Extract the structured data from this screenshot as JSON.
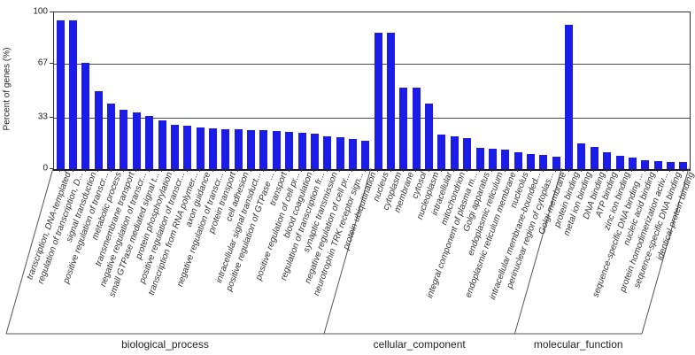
{
  "chart_data": {
    "type": "bar",
    "title": "",
    "ylabel": "Percent of genes (%)",
    "ylim": [
      0,
      100
    ],
    "yticks": [
      0,
      33,
      67,
      100
    ],
    "grid": true,
    "legend": "none",
    "bar_color": "#1c1ce8",
    "groups": [
      {
        "label": "biological_process",
        "items": [
          {
            "label": "transcription, DNA-templated",
            "value": 95
          },
          {
            "label": "regulation of transcription, D...",
            "value": 95
          },
          {
            "label": "signal transduction",
            "value": 68
          },
          {
            "label": "positive regulation of transcr...",
            "value": 50
          },
          {
            "label": "metabolic process",
            "value": 42
          },
          {
            "label": "transmembrane transport",
            "value": 38
          },
          {
            "label": "negative regulation of transcr...",
            "value": 36
          },
          {
            "label": "small GTPase mediated signal t...",
            "value": 34
          },
          {
            "label": "protein phosphorylation",
            "value": 31
          },
          {
            "label": "positive regulation of transcr...",
            "value": 28.5
          },
          {
            "label": "transcription from RNA polymer...",
            "value": 27.5
          },
          {
            "label": "axon guidance",
            "value": 26.5
          },
          {
            "label": "negative regulation of transcr...",
            "value": 26
          },
          {
            "label": "protein transport",
            "value": 25.5
          },
          {
            "label": "cell adhesion",
            "value": 25.5
          },
          {
            "label": "intracellular signal transduct...",
            "value": 25
          },
          {
            "label": "positive regulation of GTPase ...",
            "value": 25
          },
          {
            "label": "transport",
            "value": 24.5
          },
          {
            "label": "positive regulation of cell pr...",
            "value": 24
          },
          {
            "label": "blood coagulation",
            "value": 23
          },
          {
            "label": "regulation of transcription fr...",
            "value": 22.5
          },
          {
            "label": "synaptic transmission",
            "value": 21
          },
          {
            "label": "negative regulation of cell pr...",
            "value": 20.5
          },
          {
            "label": "neurotrophin TRK receptor sign...",
            "value": 19
          },
          {
            "label": "protein ubiquitination",
            "value": 18
          }
        ]
      },
      {
        "label": "cellular_component",
        "items": [
          {
            "label": "nucleus",
            "value": 87
          },
          {
            "label": "cytoplasm",
            "value": 87
          },
          {
            "label": "membrane",
            "value": 52
          },
          {
            "label": "cytosol",
            "value": 52
          },
          {
            "label": "nucleoplasm",
            "value": 42
          },
          {
            "label": "intracellular",
            "value": 22
          },
          {
            "label": "mitochondrion",
            "value": 21
          },
          {
            "label": "integral component of plasma m...",
            "value": 20
          },
          {
            "label": "Golgi apparatus",
            "value": 13.5
          },
          {
            "label": "endoplasmic reticulum",
            "value": 13
          },
          {
            "label": "endoplasmic reticulum membrane",
            "value": 12.5
          },
          {
            "label": "nucleolus",
            "value": 11
          },
          {
            "label": "intracellular membrane-bounded...",
            "value": 9.5
          },
          {
            "label": "perinuclear region of cytoplas...",
            "value": 9
          },
          {
            "label": "Golgi membrane",
            "value": 8
          }
        ]
      },
      {
        "label": "molecular_function",
        "items": [
          {
            "label": "protein binding",
            "value": 92
          },
          {
            "label": "metal ion binding",
            "value": 16.5
          },
          {
            "label": "DNA binding",
            "value": 14
          },
          {
            "label": "ATP binding",
            "value": 11
          },
          {
            "label": "zinc ion binding",
            "value": 8.5
          },
          {
            "label": "sequence-specific DNA binding ...",
            "value": 7.5
          },
          {
            "label": "nucleic acid binding",
            "value": 5.5
          },
          {
            "label": "protein homodimerization activ...",
            "value": 5
          },
          {
            "label": "sequence-specific DNA binding",
            "value": 4.5
          },
          {
            "label": "identical protein binding",
            "value": 4.5
          }
        ]
      }
    ]
  }
}
